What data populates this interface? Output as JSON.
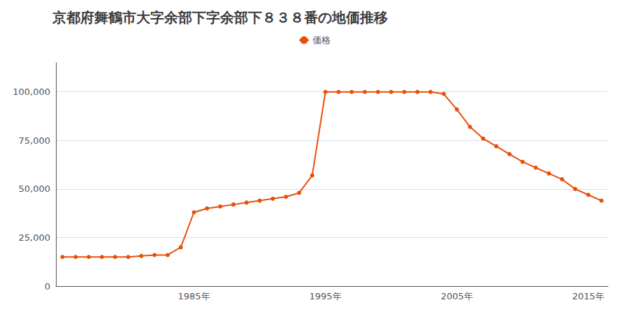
{
  "chart_data": {
    "type": "line",
    "title": "京都府舞鶴市大字余部下字余部下８３８番の地価推移",
    "x": [
      1975,
      1976,
      1977,
      1978,
      1979,
      1980,
      1981,
      1982,
      1983,
      1984,
      1985,
      1986,
      1987,
      1988,
      1989,
      1990,
      1991,
      1992,
      1993,
      1994,
      1995,
      1996,
      1997,
      1998,
      1999,
      2000,
      2001,
      2002,
      2003,
      2004,
      2005,
      2006,
      2007,
      2008,
      2009,
      2010,
      2011,
      2012,
      2013,
      2014,
      2015,
      2016
    ],
    "series": [
      {
        "name": "価格",
        "color": "#E8500A",
        "values": [
          15000,
          15000,
          15000,
          15000,
          15000,
          15000,
          15500,
          16000,
          16000,
          20000,
          38000,
          40000,
          41000,
          42000,
          43000,
          44000,
          45000,
          46000,
          48000,
          57000,
          100000,
          100000,
          100000,
          100000,
          100000,
          100000,
          100000,
          100000,
          100000,
          99000,
          91000,
          82000,
          76000,
          72000,
          68000,
          64000,
          61000,
          58000,
          55000,
          50000,
          47000,
          44000
        ]
      }
    ],
    "xlim": [
      1974.5,
      2016.5
    ],
    "xticks": [
      {
        "value": 1985,
        "label": "1985年"
      },
      {
        "value": 1995,
        "label": "1995年"
      },
      {
        "value": 2005,
        "label": "2005年"
      },
      {
        "value": 2015,
        "label": "2015年"
      }
    ],
    "ylim": [
      0,
      115000
    ],
    "yticks": [
      0,
      {
        "value": 25000,
        "label": "25,000"
      },
      {
        "value": 50000,
        "label": "50,000"
      },
      {
        "value": 75000,
        "label": "75,000"
      },
      {
        "value": 100000,
        "label": "100,000"
      }
    ],
    "grid": "y",
    "legend": "top",
    "marker": "circle"
  }
}
